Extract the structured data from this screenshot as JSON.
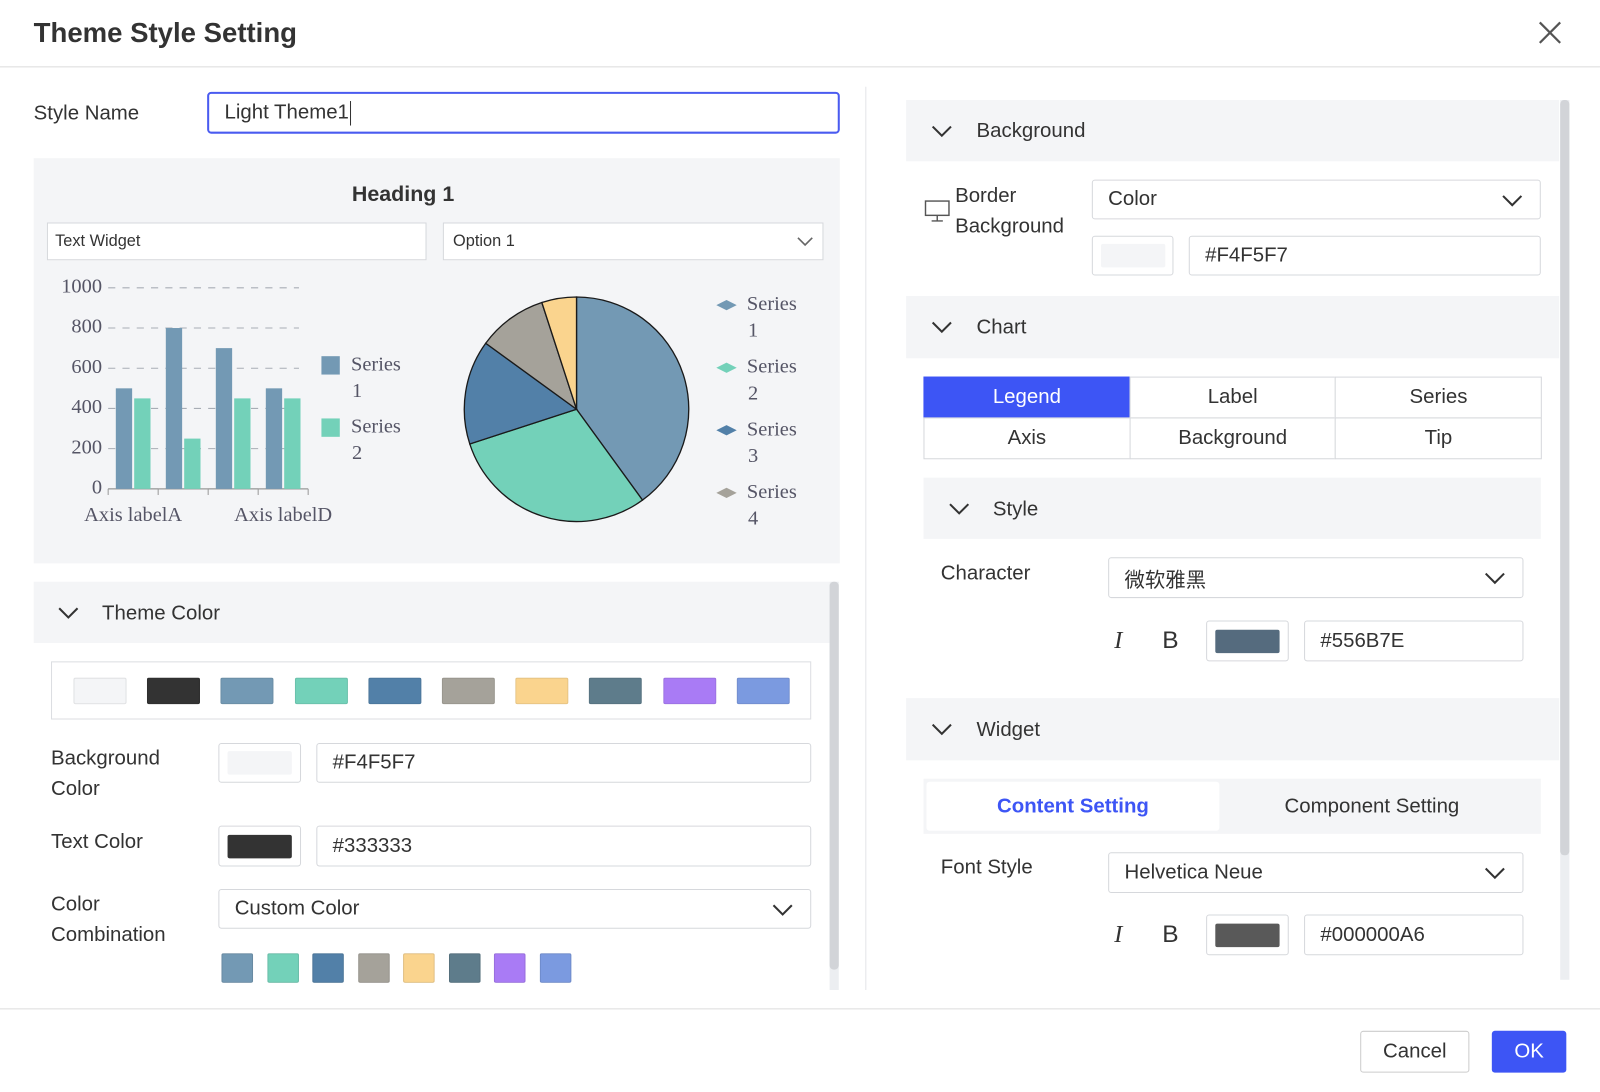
{
  "dialog": {
    "title": "Theme Style Setting"
  },
  "style_name": {
    "label": "Style Name",
    "value": "Light Theme1"
  },
  "preview": {
    "heading": "Heading 1",
    "text_widget": "Text Widget",
    "select": "Option 1"
  },
  "chart_data": [
    {
      "type": "bar",
      "categories": [
        "Axis labelA",
        null,
        null,
        "Axis labelD"
      ],
      "series": [
        {
          "name": "Series 1",
          "color": "#7399B4",
          "values": [
            500,
            800,
            700,
            500
          ]
        },
        {
          "name": "Series 2",
          "color": "#73D1B9",
          "values": [
            450,
            250,
            450,
            450
          ]
        }
      ],
      "ylim": [
        0,
        1000
      ],
      "yticks": [
        0,
        200,
        400,
        600,
        800,
        1000
      ],
      "grid": true
    },
    {
      "type": "pie",
      "categories": [
        "Series 1",
        "Series 2",
        "Series 3",
        "Series 4",
        null
      ],
      "values": [
        40,
        30,
        15,
        10,
        5
      ],
      "colors": [
        "#7399B4",
        "#73D1B9",
        "#5280A8",
        "#A5A29A",
        "#FAD48E"
      ]
    }
  ],
  "theme_color": {
    "title": "Theme Color",
    "palette": [
      "#F4F5F7",
      "#333333",
      "#7399B4",
      "#73D1B9",
      "#5280A8",
      "#A5A29A",
      "#FAD48E",
      "#5E7C8B",
      "#A97BF5",
      "#7B9AE0"
    ],
    "background_label": "Background Color",
    "background_value": "#F4F5F7",
    "text_label": "Text Color",
    "text_value": "#333333",
    "combination_label": "Color Combination",
    "combination_value": "Custom Color",
    "combination_colors": [
      "#7399B4",
      "#73D1B9",
      "#5280A8",
      "#A5A29A",
      "#FAD48E",
      "#5E7C8B",
      "#A97BF5",
      "#7B9AE0"
    ]
  },
  "right": {
    "background": {
      "title": "Background",
      "label": "Border Background",
      "fill_type": "Color",
      "value": "#F4F5F7"
    },
    "chart": {
      "title": "Chart",
      "tabs": [
        "Legend",
        "Label",
        "Series",
        "Axis",
        "Background",
        "Tip"
      ],
      "active_tab": 0,
      "style": {
        "title": "Style",
        "character_label": "Character",
        "font": "微软雅黑",
        "italic": "I",
        "bold": "B",
        "color": "#556B7E"
      }
    },
    "widget": {
      "title": "Widget",
      "tabs": [
        "Content Setting",
        "Component Setting"
      ],
      "active_tab": 0,
      "font_label": "Font Style",
      "font": "Helvetica Neue",
      "italic": "I",
      "bold": "B",
      "color": "#000000A6"
    }
  },
  "footer": {
    "cancel": "Cancel",
    "ok": "OK"
  }
}
